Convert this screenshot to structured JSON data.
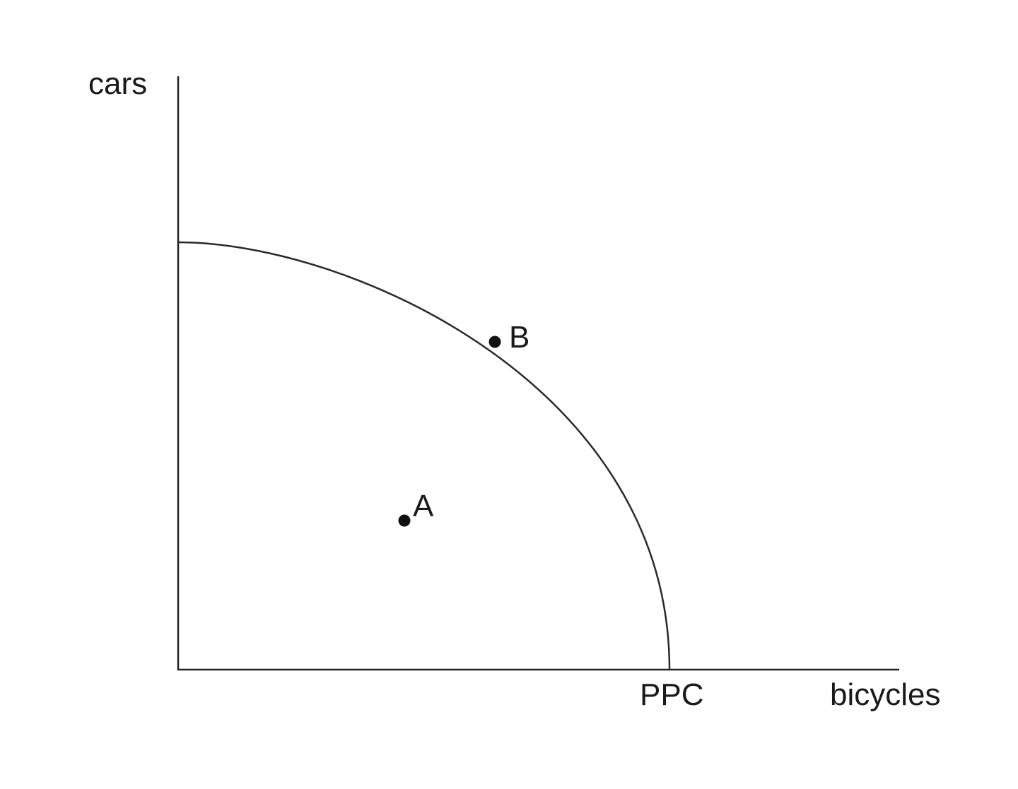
{
  "axes": {
    "y_label": "cars",
    "x_label": "bicycles"
  },
  "curve": {
    "label": "PPC"
  },
  "points": [
    {
      "id": "A",
      "label": "A",
      "position": "inside the curve"
    },
    {
      "id": "B",
      "label": "B",
      "position": "on the curve"
    }
  ],
  "colors": {
    "stroke": "#222222",
    "background": "#ffffff"
  }
}
